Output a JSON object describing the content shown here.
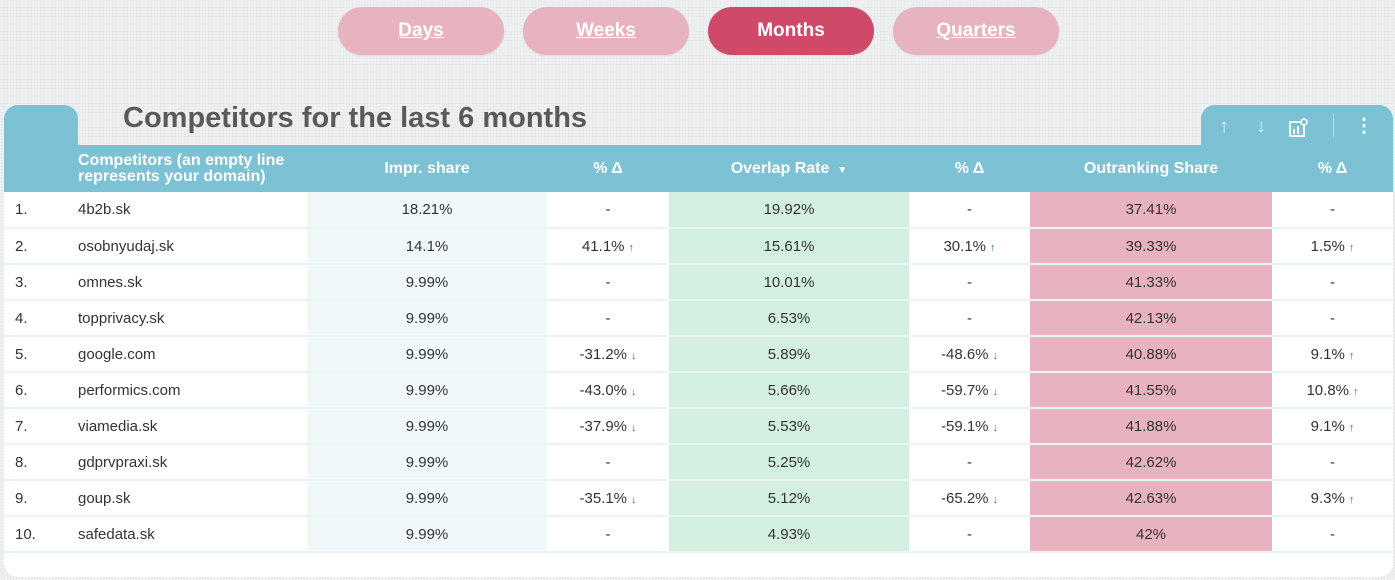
{
  "periods": [
    {
      "label": "Days",
      "active": false
    },
    {
      "label": "Weeks",
      "active": false
    },
    {
      "label": "Months",
      "active": true
    },
    {
      "label": "Quarters",
      "active": false
    }
  ],
  "title": "Competitors for the last 6 months",
  "columns": {
    "competitors": "Competitors (an empty line represents your domain)",
    "impr_share": "Impr. share",
    "impr_delta": "% Δ",
    "overlap_rate": "Overlap Rate",
    "overlap_delta": "% Δ",
    "outranking_share": "Outranking Share",
    "outranking_delta": "% Δ"
  },
  "rows": [
    {
      "rank": "1.",
      "domain": "4b2b.sk",
      "impr": "18.21%",
      "impr_delta": "-",
      "overlap": "19.92%",
      "overlap_delta": "-",
      "out": "37.41%",
      "out_delta": "-"
    },
    {
      "rank": "2.",
      "domain": "osobnyudaj.sk",
      "impr": "14.1%",
      "impr_delta": "41.1%",
      "overlap": "15.61%",
      "overlap_delta": "30.1%",
      "out": "39.33%",
      "out_delta": "1.5%"
    },
    {
      "rank": "3.",
      "domain": "omnes.sk",
      "impr": "9.99%",
      "impr_delta": "-",
      "overlap": "10.01%",
      "overlap_delta": "-",
      "out": "41.33%",
      "out_delta": "-"
    },
    {
      "rank": "4.",
      "domain": "topprivacy.sk",
      "impr": "9.99%",
      "impr_delta": "-",
      "overlap": "6.53%",
      "overlap_delta": "-",
      "out": "42.13%",
      "out_delta": "-"
    },
    {
      "rank": "5.",
      "domain": "google.com",
      "impr": "9.99%",
      "impr_delta": "-31.2%",
      "overlap": "5.89%",
      "overlap_delta": "-48.6%",
      "out": "40.88%",
      "out_delta": "9.1%"
    },
    {
      "rank": "6.",
      "domain": "performics.com",
      "impr": "9.99%",
      "impr_delta": "-43.0%",
      "overlap": "5.66%",
      "overlap_delta": "-59.7%",
      "out": "41.55%",
      "out_delta": "10.8%"
    },
    {
      "rank": "7.",
      "domain": "viamedia.sk",
      "impr": "9.99%",
      "impr_delta": "-37.9%",
      "overlap": "5.53%",
      "overlap_delta": "-59.1%",
      "out": "41.88%",
      "out_delta": "9.1%"
    },
    {
      "rank": "8.",
      "domain": "gdprvpraxi.sk",
      "impr": "9.99%",
      "impr_delta": "-",
      "overlap": "5.25%",
      "overlap_delta": "-",
      "out": "42.62%",
      "out_delta": "-"
    },
    {
      "rank": "9.",
      "domain": "goup.sk",
      "impr": "9.99%",
      "impr_delta": "-35.1%",
      "overlap": "5.12%",
      "overlap_delta": "-65.2%",
      "out": "42.63%",
      "out_delta": "9.3%"
    },
    {
      "rank": "10.",
      "domain": "safedata.sk",
      "impr": "9.99%",
      "impr_delta": "-",
      "overlap": "4.93%",
      "overlap_delta": "-",
      "out": "42%",
      "out_delta": "-"
    }
  ],
  "icons": {
    "up_arrow": "arrow-up-icon",
    "down_arrow": "arrow-down-icon",
    "explore": "chart-explore-icon",
    "more": "more-vert-icon",
    "sort": "sort-desc-icon"
  },
  "colors": {
    "header": "#7cc1d4",
    "period_active": "#cf4a69",
    "period_inactive": "#e8b3c0",
    "overlap_fill": "#d2efe2",
    "outranking_fill": "#e9b2c0",
    "delta_up": "#2e8b3e",
    "delta_down": "#d33a3a"
  }
}
